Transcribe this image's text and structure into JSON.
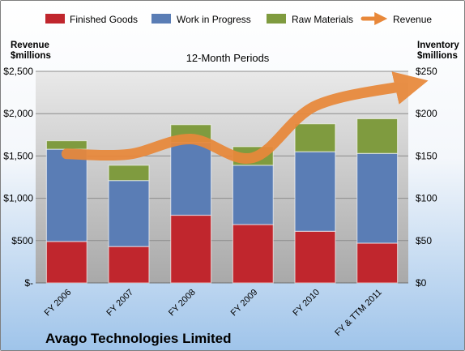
{
  "chart_data": {
    "type": "bar",
    "title": "12-Month Periods",
    "company": "Avago Technologies Limited",
    "left_axis_label": [
      "Revenue",
      "$millions"
    ],
    "right_axis_label": [
      "Inventory",
      "$millions"
    ],
    "categories": [
      "FY 2006",
      "FY 2007",
      "FY 2008",
      "FY 2009",
      "FY 2010",
      "FY & TTM 2011"
    ],
    "left_ylim": [
      0,
      2500
    ],
    "right_ylim": [
      0,
      250
    ],
    "left_ticks": [
      "$-",
      "$500",
      "$1,000",
      "$1,500",
      "$2,000",
      "$2,500"
    ],
    "right_ticks": [
      "$0",
      "$50",
      "$100",
      "$150",
      "$200",
      "$250"
    ],
    "stacked": true,
    "series": [
      {
        "name": "Finished Goods",
        "axis": "right",
        "color": "#c0262d",
        "values": [
          49,
          43,
          80,
          69,
          61,
          47
        ]
      },
      {
        "name": "Work in Progress",
        "axis": "right",
        "color": "#5a7db5",
        "values": [
          109,
          78,
          86,
          70,
          94,
          106
        ]
      },
      {
        "name": "Raw Materials",
        "axis": "right",
        "color": "#7f9b3f",
        "values": [
          10,
          18,
          21,
          22,
          33,
          41
        ]
      }
    ],
    "line_series": {
      "name": "Revenue",
      "axis": "left",
      "color": "#e8883a",
      "values": [
        1525,
        1520,
        1700,
        1480,
        2090,
        2330
      ]
    },
    "grid": true,
    "legend_position": "top"
  }
}
